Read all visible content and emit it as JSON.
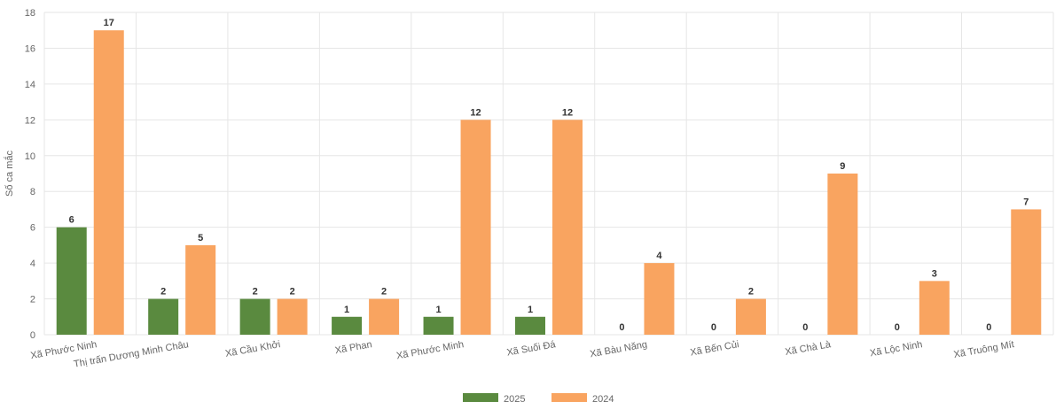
{
  "chart_data": {
    "type": "bar",
    "categories": [
      "Xã Phước Ninh",
      "Thị trấn Dương Minh Châu",
      "Xã Cầu Khởi",
      "Xã Phan",
      "Xã Phước Minh",
      "Xã Suối Đá",
      "Xã Bàu Năng",
      "Xã Bến Củi",
      "Xã Chà Là",
      "Xã Lộc Ninh",
      "Xã Truông Mít"
    ],
    "series": [
      {
        "name": "2025",
        "color": "#5a8a3f",
        "values": [
          6,
          2,
          2,
          1,
          1,
          1,
          0,
          0,
          0,
          0,
          0
        ]
      },
      {
        "name": "2024",
        "color": "#f9a460",
        "values": [
          17,
          5,
          2,
          2,
          12,
          12,
          4,
          2,
          9,
          3,
          7
        ]
      }
    ],
    "title": "",
    "xlabel": "",
    "ylabel": "Số ca mắc",
    "ylim": [
      0,
      18
    ],
    "yticks": [
      0,
      2,
      4,
      6,
      8,
      10,
      12,
      14,
      16,
      18
    ],
    "grid": true,
    "legend": "bottom-center",
    "data_labels": true
  }
}
